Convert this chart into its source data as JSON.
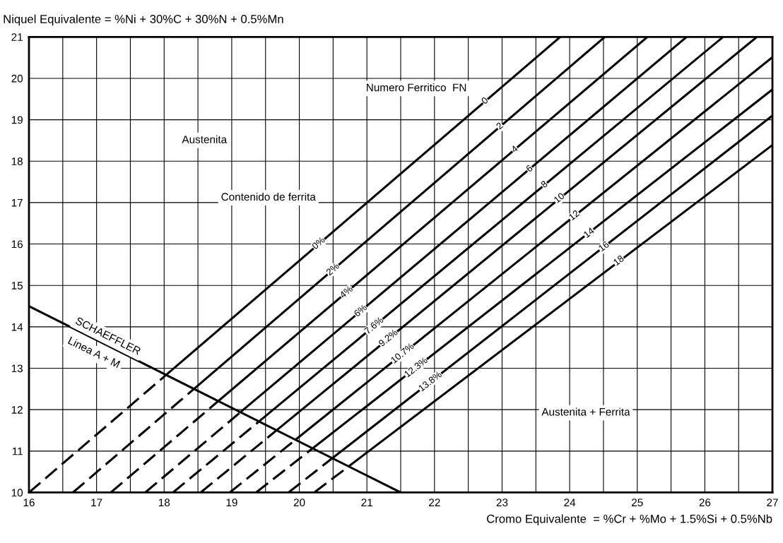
{
  "chart_data": {
    "type": "line",
    "ylabel": "Niquel Equivalente = %Ni + 30%C + 30%N + 0.5%Mn",
    "xlabel": "Cromo Equivalente  = %Cr + %Mo + 1.5%Si + 0.5%Nb",
    "xlim": [
      16,
      27
    ],
    "ylim": [
      10,
      21
    ],
    "xticks": [
      16,
      {
        "value": 16.5,
        "label": null
      },
      17,
      {
        "value": 17.5,
        "label": null
      },
      18,
      {
        "value": 18.5,
        "label": null
      },
      19,
      {
        "value": 19.5,
        "label": null
      },
      20,
      {
        "value": 20.5,
        "label": null
      },
      21,
      {
        "value": 21.5,
        "label": null
      },
      22,
      {
        "value": 22.5,
        "label": null
      },
      23,
      {
        "value": 23.5,
        "label": null
      },
      24,
      {
        "value": 24.5,
        "label": null
      },
      25,
      {
        "value": 25.5,
        "label": null
      },
      26,
      {
        "value": 26.5,
        "label": null
      },
      27
    ],
    "yticks": [
      10,
      11,
      12,
      13,
      14,
      15,
      16,
      17,
      18,
      19,
      20,
      21
    ],
    "grid": true,
    "series": [
      {
        "color": "#000000",
        "line_style": "dashed",
        "x": [
          16.0,
          18.03
        ],
        "values": [
          10,
          12.84
        ]
      },
      {
        "color": "#000000",
        "line_style": "solid",
        "x": [
          18.03,
          23.86
        ],
        "values": [
          12.84,
          21
        ]
      },
      {
        "color": "#000000",
        "line_style": "dashed",
        "x": [
          16.65,
          18.44
        ],
        "values": [
          10,
          12.5
        ]
      },
      {
        "color": "#000000",
        "line_style": "solid",
        "x": [
          18.44,
          24.52
        ],
        "values": [
          12.5,
          21
        ]
      },
      {
        "color": "#000000",
        "line_style": "dashed",
        "x": [
          17.21,
          18.81
        ],
        "values": [
          10,
          12.22
        ]
      },
      {
        "color": "#000000",
        "line_style": "solid",
        "x": [
          18.81,
          25.15
        ],
        "values": [
          12.22,
          21
        ]
      },
      {
        "color": "#000000",
        "line_style": "dashed",
        "x": [
          17.72,
          19.13
        ],
        "values": [
          10,
          11.94
        ]
      },
      {
        "color": "#000000",
        "line_style": "solid",
        "x": [
          19.13,
          25.73
        ],
        "values": [
          11.94,
          21
        ]
      },
      {
        "color": "#000000",
        "line_style": "dashed",
        "x": [
          18.13,
          19.4
        ],
        "values": [
          10,
          11.71
        ]
      },
      {
        "color": "#000000",
        "line_style": "solid",
        "x": [
          19.4,
          26.27
        ],
        "values": [
          11.71,
          21
        ]
      },
      {
        "color": "#000000",
        "line_style": "dashed",
        "x": [
          18.54,
          19.67
        ],
        "values": [
          10,
          11.51
        ]
      },
      {
        "color": "#000000",
        "line_style": "solid",
        "x": [
          19.67,
          26.77
        ],
        "values": [
          11.51,
          21
        ]
      },
      {
        "color": "#000000",
        "line_style": "dashed",
        "x": [
          18.97,
          19.94
        ],
        "values": [
          10,
          11.27
        ]
      },
      {
        "color": "#000000",
        "line_style": "solid",
        "x": [
          19.94,
          27
        ],
        "values": [
          11.27,
          20.51
        ]
      },
      {
        "color": "#000000",
        "line_style": "dashed",
        "x": [
          19.36,
          20.2
        ],
        "values": [
          10,
          11.07
        ]
      },
      {
        "color": "#000000",
        "line_style": "solid",
        "x": [
          20.2,
          27
        ],
        "values": [
          11.07,
          19.73
        ]
      },
      {
        "color": "#000000",
        "line_style": "dashed",
        "x": [
          19.84,
          20.49
        ],
        "values": [
          10,
          10.83
        ]
      },
      {
        "color": "#000000",
        "line_style": "solid",
        "x": [
          20.49,
          27
        ],
        "values": [
          10.83,
          19.1
        ]
      },
      {
        "color": "#000000",
        "line_style": "dashed",
        "x": [
          20.22,
          20.73
        ],
        "values": [
          10,
          10.63
        ]
      },
      {
        "color": "#000000",
        "line_style": "solid",
        "x": [
          20.73,
          27
        ],
        "values": [
          10.63,
          18.39
        ]
      },
      {
        "color": "#000000",
        "line_style": "solid",
        "x": [
          16,
          21.5
        ],
        "values": [
          14.5,
          10
        ]
      }
    ],
    "annotations": [
      "Austenita",
      "Numero Ferritico  FN",
      "Contenido de ferrita",
      "Austenita + Ferrita",
      "SCHAEFFLER",
      "Linea A + M",
      {
        "text": "0",
        "x": 22.75,
        "y": 19.45
      },
      {
        "text": "2",
        "x": 22.97,
        "y": 18.84
      },
      {
        "text": "4",
        "x": 23.19,
        "y": 18.28
      },
      {
        "text": "6",
        "x": 23.41,
        "y": 17.81
      },
      {
        "text": "8",
        "x": 23.63,
        "y": 17.43
      },
      {
        "text": "10",
        "x": 23.85,
        "y": 17.1
      },
      {
        "text": "12",
        "x": 24.07,
        "y": 16.68
      },
      {
        "text": "14",
        "x": 24.29,
        "y": 16.26
      },
      {
        "text": "16",
        "x": 24.51,
        "y": 15.93
      },
      {
        "text": "18",
        "x": 24.73,
        "y": 15.59
      },
      {
        "text": "0%",
        "x": 20.29,
        "y": 16.01
      },
      {
        "text": "2%",
        "x": 20.5,
        "y": 15.38
      },
      {
        "text": "4%",
        "x": 20.7,
        "y": 14.83
      },
      {
        "text": "6%",
        "x": 20.91,
        "y": 14.38
      },
      {
        "text": "7.6%",
        "x": 21.11,
        "y": 14.02
      },
      {
        "text": "9.2%",
        "x": 21.32,
        "y": 13.72
      },
      {
        "text": "10.7%",
        "x": 21.53,
        "y": 13.35
      },
      {
        "text": "12.3%",
        "x": 21.73,
        "y": 13.01
      },
      {
        "text": "13.8%",
        "x": 21.94,
        "y": 12.67
      }
    ]
  }
}
